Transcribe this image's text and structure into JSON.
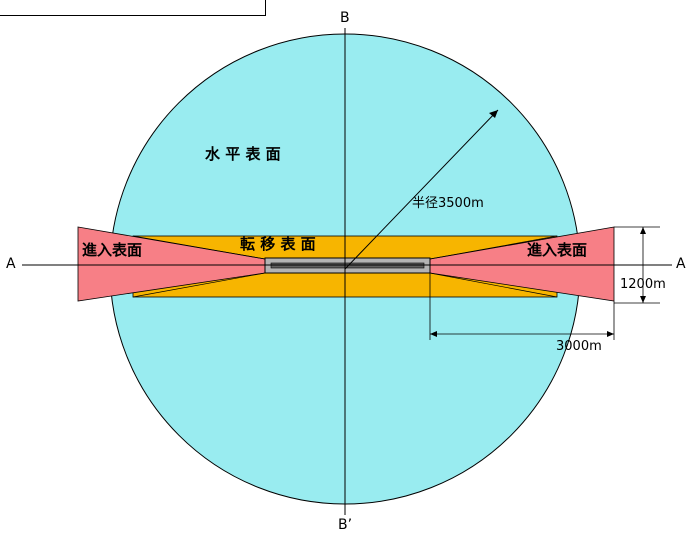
{
  "colors": {
    "horizontal_surface": "#99ecf0",
    "transitional_surface": "#f7b500",
    "approach_surface": "#f77f86",
    "runway_strip": "#b3b3b3",
    "runway": "#5e5e5e",
    "line": "#000000"
  },
  "labels": {
    "horizontal_surface": "水 平 表 面",
    "transitional_surface": "転 移 表 面",
    "approach_surface_left": "進入表面",
    "approach_surface_right": "進入表面",
    "radius": "半径3500m",
    "width_dimension": "1200m",
    "length_dimension": "3000m"
  },
  "axes": {
    "a_left": "A",
    "a_right": "A",
    "b_top": "B",
    "b_bottom": "B’"
  }
}
